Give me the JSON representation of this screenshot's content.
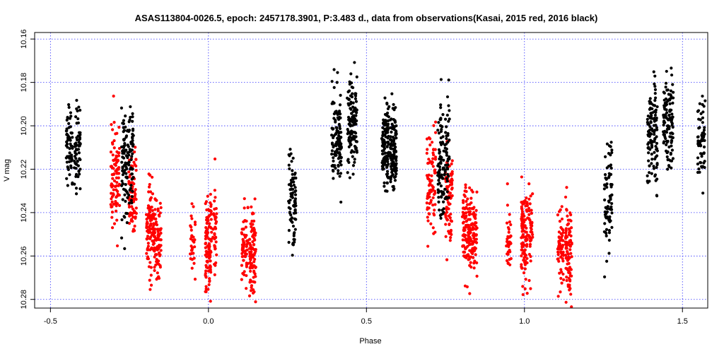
{
  "chart_data": {
    "type": "scatter",
    "title": "ASAS113804-0026.5, epoch: 2457178.3901, P:3.483 d., data from observations(Kasai, 2015 red, 2016 black)",
    "xlabel": "Phase",
    "ylabel": "V mag",
    "xlim": [
      -0.55,
      1.58
    ],
    "ylim": [
      10.284,
      10.157
    ],
    "y_inverted": true,
    "x_ticks": [
      -0.5,
      0.0,
      0.5,
      1.0,
      1.5
    ],
    "x_tick_labels": [
      "-0.5",
      "0.0",
      "0.5",
      "1.0",
      "1.5"
    ],
    "y_ticks": [
      10.16,
      10.18,
      10.2,
      10.22,
      10.24,
      10.26,
      10.28
    ],
    "y_tick_labels": [
      "10.16",
      "10.18",
      "10.20",
      "10.22",
      "10.24",
      "10.26",
      "10.28"
    ],
    "grid": "dotted-blue at major ticks",
    "series": [
      {
        "color": "#ff0000",
        "clusters": [
          {
            "phase": -0.295,
            "width": 0.014,
            "mean": 10.225,
            "spread": 0.012,
            "count": 90
          },
          {
            "phase": -0.24,
            "width": 0.012,
            "mean": 10.232,
            "spread": 0.011,
            "count": 80
          },
          {
            "phase": -0.185,
            "width": 0.012,
            "mean": 10.248,
            "spread": 0.01,
            "count": 90
          },
          {
            "phase": -0.162,
            "width": 0.012,
            "mean": 10.252,
            "spread": 0.01,
            "count": 90
          },
          {
            "phase": -0.05,
            "width": 0.008,
            "mean": 10.253,
            "spread": 0.008,
            "count": 35
          },
          {
            "phase": 0.0,
            "width": 0.01,
            "mean": 10.253,
            "spread": 0.011,
            "count": 110
          },
          {
            "phase": 0.02,
            "width": 0.006,
            "mean": 10.248,
            "spread": 0.01,
            "count": 40
          },
          {
            "phase": 0.115,
            "width": 0.01,
            "mean": 10.256,
            "spread": 0.008,
            "count": 60
          },
          {
            "phase": 0.14,
            "width": 0.01,
            "mean": 10.258,
            "spread": 0.011,
            "count": 90
          }
        ]
      },
      {
        "color": "#000000",
        "clusters": [
          {
            "phase": -0.44,
            "width": 0.01,
            "mean": 10.21,
            "spread": 0.009,
            "count": 60
          },
          {
            "phase": -0.415,
            "width": 0.01,
            "mean": 10.213,
            "spread": 0.01,
            "count": 60
          },
          {
            "phase": -0.265,
            "width": 0.01,
            "mean": 10.22,
            "spread": 0.014,
            "count": 80
          },
          {
            "phase": -0.245,
            "width": 0.008,
            "mean": 10.212,
            "spread": 0.012,
            "count": 50
          },
          {
            "phase": 0.265,
            "width": 0.012,
            "mean": 10.236,
            "spread": 0.011,
            "count": 80
          },
          {
            "phase": 0.405,
            "width": 0.016,
            "mean": 10.205,
            "spread": 0.011,
            "count": 120
          },
          {
            "phase": 0.455,
            "width": 0.016,
            "mean": 10.198,
            "spread": 0.01,
            "count": 120
          },
          {
            "phase": 0.56,
            "width": 0.012,
            "mean": 10.208,
            "spread": 0.009,
            "count": 60
          },
          {
            "phase": 0.585,
            "width": 0.01,
            "mean": 10.213,
            "spread": 0.01,
            "count": 60
          }
        ]
      }
    ]
  }
}
